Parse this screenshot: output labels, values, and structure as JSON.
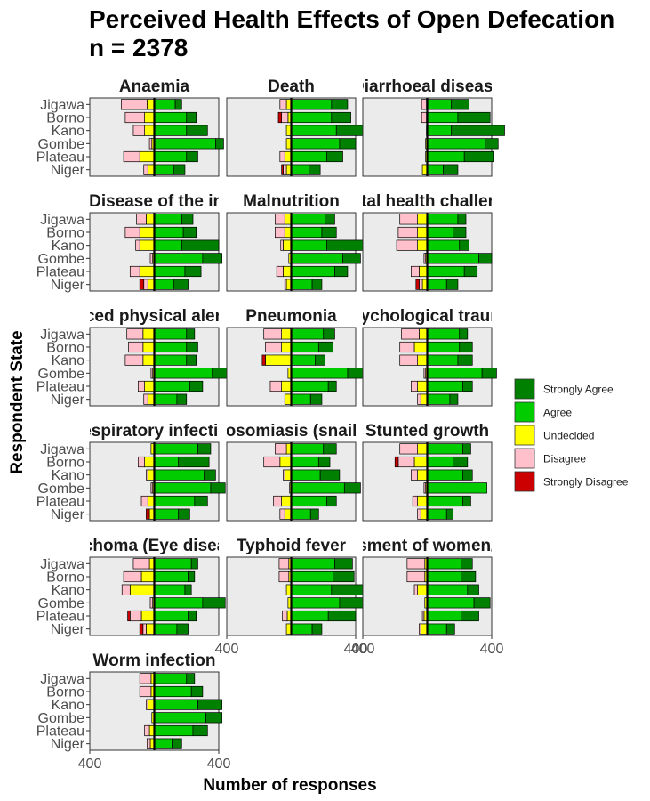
{
  "chart_data": {
    "type": "bar",
    "orientation": "horizontal-diverging",
    "title": "Perceived Health Effects of Open Defecation",
    "subtitle": "n = 2378",
    "xlabel": "Number of responses",
    "ylabel": "Respondent State",
    "categories": [
      "Jigawa",
      "Borno",
      "Kano",
      "Gombe",
      "Plateau",
      "Niger"
    ],
    "x_tick_labels": [
      "400",
      "400"
    ],
    "levels": [
      "Strongly Disagree",
      "Disagree",
      "Undecided",
      "Agree",
      "Strongly Agree"
    ],
    "legend": {
      "position": "right",
      "entries": [
        {
          "label": "Strongly Agree",
          "color": "#008000"
        },
        {
          "label": "Agree",
          "color": "#00CC00"
        },
        {
          "label": "Undecided",
          "color": "#FFFF00"
        },
        {
          "label": "Disagree",
          "color": "#FFC0CB"
        },
        {
          "label": "Strongly Disagree",
          "color": "#CC0000"
        }
      ]
    },
    "xlim": [
      -400,
      400
    ],
    "panel_background": "#EBEBEB",
    "panels": [
      {
        "title": "Anaemia",
        "rows": [
          {
            "state": "Jigawa",
            "sd": 0,
            "d": 160,
            "u": 45,
            "a": 130,
            "sa": 40
          },
          {
            "state": "Borno",
            "sd": 0,
            "d": 120,
            "u": 60,
            "a": 200,
            "sa": 60
          },
          {
            "state": "Kano",
            "sd": 0,
            "d": 70,
            "u": 60,
            "a": 200,
            "sa": 130
          },
          {
            "state": "Gombe",
            "sd": 0,
            "d": 15,
            "u": 15,
            "a": 380,
            "sa": 50
          },
          {
            "state": "Plateau",
            "sd": 0,
            "d": 100,
            "u": 90,
            "a": 200,
            "sa": 70
          },
          {
            "state": "Niger",
            "sd": 0,
            "d": 25,
            "u": 40,
            "a": 120,
            "sa": 70
          }
        ]
      },
      {
        "title": "Death",
        "rows": [
          {
            "state": "Jigawa",
            "sd": 0,
            "d": 40,
            "u": 30,
            "a": 250,
            "sa": 100
          },
          {
            "state": "Borno",
            "sd": 20,
            "d": 40,
            "u": 20,
            "a": 250,
            "sa": 120
          },
          {
            "state": "Kano",
            "sd": 0,
            "d": 0,
            "u": 30,
            "a": 280,
            "sa": 230
          },
          {
            "state": "Gombe",
            "sd": 0,
            "d": 0,
            "u": 30,
            "a": 300,
            "sa": 100
          },
          {
            "state": "Plateau",
            "sd": 0,
            "d": 30,
            "u": 40,
            "a": 220,
            "sa": 100
          },
          {
            "state": "Niger",
            "sd": 10,
            "d": 20,
            "u": 30,
            "a": 110,
            "sa": 70
          }
        ]
      },
      {
        "title": "Diarrhoeal disease",
        "rows": [
          {
            "state": "Jigawa",
            "sd": 0,
            "d": 30,
            "u": 5,
            "a": 150,
            "sa": 110
          },
          {
            "state": "Borno",
            "sd": 0,
            "d": 30,
            "u": 5,
            "a": 190,
            "sa": 200
          },
          {
            "state": "Kano",
            "sd": 0,
            "d": 0,
            "u": 5,
            "a": 150,
            "sa": 330
          },
          {
            "state": "Gombe",
            "sd": 0,
            "d": 0,
            "u": 10,
            "a": 360,
            "sa": 80
          },
          {
            "state": "Plateau",
            "sd": 0,
            "d": 0,
            "u": 10,
            "a": 230,
            "sa": 180
          },
          {
            "state": "Niger",
            "sd": 0,
            "d": 0,
            "u": 30,
            "a": 100,
            "sa": 90
          }
        ]
      },
      {
        "title": "Cholera (Disease of the intestines)",
        "rows": [
          {
            "state": "Jigawa",
            "sd": 0,
            "d": 60,
            "u": 50,
            "a": 170,
            "sa": 70
          },
          {
            "state": "Borno",
            "sd": 0,
            "d": 90,
            "u": 90,
            "a": 180,
            "sa": 80
          },
          {
            "state": "Kano",
            "sd": 0,
            "d": 25,
            "u": 90,
            "a": 170,
            "sa": 230
          },
          {
            "state": "Gombe",
            "sd": 0,
            "d": 15,
            "u": 10,
            "a": 300,
            "sa": 120
          },
          {
            "state": "Plateau",
            "sd": 0,
            "d": 60,
            "u": 90,
            "a": 190,
            "sa": 100
          },
          {
            "state": "Niger",
            "sd": 25,
            "d": 25,
            "u": 40,
            "a": 120,
            "sa": 90
          }
        ]
      },
      {
        "title": "Malnutrition",
        "rows": [
          {
            "state": "Jigawa",
            "sd": 0,
            "d": 60,
            "u": 40,
            "a": 210,
            "sa": 60
          },
          {
            "state": "Borno",
            "sd": 0,
            "d": 60,
            "u": 40,
            "a": 190,
            "sa": 90
          },
          {
            "state": "Kano",
            "sd": 0,
            "d": 15,
            "u": 50,
            "a": 220,
            "sa": 240
          },
          {
            "state": "Gombe",
            "sd": 0,
            "d": 0,
            "u": 15,
            "a": 320,
            "sa": 110
          },
          {
            "state": "Plateau",
            "sd": 0,
            "d": 40,
            "u": 50,
            "a": 270,
            "sa": 80
          },
          {
            "state": "Niger",
            "sd": 0,
            "d": 10,
            "u": 30,
            "a": 130,
            "sa": 60
          }
        ]
      },
      {
        "title": "Mental health challenges",
        "rows": [
          {
            "state": "Jigawa",
            "sd": 0,
            "d": 110,
            "u": 60,
            "a": 190,
            "sa": 50
          },
          {
            "state": "Borno",
            "sd": 0,
            "d": 120,
            "u": 60,
            "a": 160,
            "sa": 80
          },
          {
            "state": "Kano",
            "sd": 0,
            "d": 130,
            "u": 60,
            "a": 200,
            "sa": 60
          },
          {
            "state": "Gombe",
            "sd": 0,
            "d": 10,
            "u": 10,
            "a": 320,
            "sa": 80
          },
          {
            "state": "Plateau",
            "sd": 0,
            "d": 50,
            "u": 50,
            "a": 230,
            "sa": 80
          },
          {
            "state": "Niger",
            "sd": 20,
            "d": 20,
            "u": 30,
            "a": 120,
            "sa": 70
          }
        ]
      },
      {
        "title": "Reduced physical alertness",
        "rows": [
          {
            "state": "Jigawa",
            "sd": 0,
            "d": 100,
            "u": 70,
            "a": 200,
            "sa": 50
          },
          {
            "state": "Borno",
            "sd": 0,
            "d": 90,
            "u": 70,
            "a": 200,
            "sa": 70
          },
          {
            "state": "Kano",
            "sd": 0,
            "d": 110,
            "u": 70,
            "a": 200,
            "sa": 60
          },
          {
            "state": "Gombe",
            "sd": 0,
            "d": 10,
            "u": 10,
            "a": 360,
            "sa": 110
          },
          {
            "state": "Plateau",
            "sd": 0,
            "d": 40,
            "u": 60,
            "a": 220,
            "sa": 80
          },
          {
            "state": "Niger",
            "sd": 0,
            "d": 25,
            "u": 40,
            "a": 140,
            "sa": 60
          }
        ]
      },
      {
        "title": "Pneumonia",
        "rows": [
          {
            "state": "Jigawa",
            "sd": 0,
            "d": 110,
            "u": 60,
            "a": 200,
            "sa": 70
          },
          {
            "state": "Borno",
            "sd": 0,
            "d": 100,
            "u": 60,
            "a": 170,
            "sa": 90
          },
          {
            "state": "Kano",
            "sd": 20,
            "d": 0,
            "u": 160,
            "a": 150,
            "sa": 60
          },
          {
            "state": "Gombe",
            "sd": 0,
            "d": 0,
            "u": 20,
            "a": 350,
            "sa": 140
          },
          {
            "state": "Plateau",
            "sd": 0,
            "d": 70,
            "u": 60,
            "a": 230,
            "sa": 50
          },
          {
            "state": "Niger",
            "sd": 0,
            "d": 0,
            "u": 40,
            "a": 120,
            "sa": 70
          }
        ]
      },
      {
        "title": "Psychological trauma",
        "rows": [
          {
            "state": "Jigawa",
            "sd": 0,
            "d": 110,
            "u": 50,
            "a": 200,
            "sa": 50
          },
          {
            "state": "Borno",
            "sd": 0,
            "d": 90,
            "u": 80,
            "a": 200,
            "sa": 80
          },
          {
            "state": "Kano",
            "sd": 0,
            "d": 110,
            "u": 60,
            "a": 190,
            "sa": 90
          },
          {
            "state": "Gombe",
            "sd": 0,
            "d": 10,
            "u": 10,
            "a": 340,
            "sa": 90
          },
          {
            "state": "Plateau",
            "sd": 0,
            "d": 40,
            "u": 60,
            "a": 220,
            "sa": 60
          },
          {
            "state": "Niger",
            "sd": 0,
            "d": 20,
            "u": 40,
            "a": 140,
            "sa": 50
          }
        ]
      },
      {
        "title": "Respiratory infection",
        "rows": [
          {
            "state": "Jigawa",
            "sd": 0,
            "d": 0,
            "u": 20,
            "a": 270,
            "sa": 80
          },
          {
            "state": "Borno",
            "sd": 0,
            "d": 40,
            "u": 60,
            "a": 150,
            "sa": 190
          },
          {
            "state": "Kano",
            "sd": 0,
            "d": 10,
            "u": 40,
            "a": 310,
            "sa": 70
          },
          {
            "state": "Gombe",
            "sd": 0,
            "d": 10,
            "u": 10,
            "a": 350,
            "sa": 90
          },
          {
            "state": "Plateau",
            "sd": 0,
            "d": 40,
            "u": 40,
            "a": 250,
            "sa": 80
          },
          {
            "state": "Niger",
            "sd": 20,
            "d": 0,
            "u": 30,
            "a": 150,
            "sa": 70
          }
        ]
      },
      {
        "title": "Schistosomiasis (snail fever)",
        "rows": [
          {
            "state": "Jigawa",
            "sd": 0,
            "d": 70,
            "u": 30,
            "a": 200,
            "sa": 80
          },
          {
            "state": "Borno",
            "sd": 0,
            "d": 100,
            "u": 70,
            "a": 170,
            "sa": 70
          },
          {
            "state": "Kano",
            "sd": 0,
            "d": 10,
            "u": 40,
            "a": 180,
            "sa": 120
          },
          {
            "state": "Gombe",
            "sd": 0,
            "d": 0,
            "u": 10,
            "a": 330,
            "sa": 100
          },
          {
            "state": "Plateau",
            "sd": 0,
            "d": 50,
            "u": 60,
            "a": 220,
            "sa": 60
          },
          {
            "state": "Niger",
            "sd": 0,
            "d": 30,
            "u": 40,
            "a": 120,
            "sa": 50
          }
        ]
      },
      {
        "title": "Stunted growth",
        "rows": [
          {
            "state": "Jigawa",
            "sd": 0,
            "d": 110,
            "u": 60,
            "a": 220,
            "sa": 50
          },
          {
            "state": "Borno",
            "sd": 20,
            "d": 100,
            "u": 80,
            "a": 160,
            "sa": 90
          },
          {
            "state": "Kano",
            "sd": 0,
            "d": 40,
            "u": 60,
            "a": 220,
            "sa": 60
          },
          {
            "state": "Gombe",
            "sd": 0,
            "d": 10,
            "u": 10,
            "a": 370,
            "sa": 0
          },
          {
            "state": "Plateau",
            "sd": 0,
            "d": 30,
            "u": 60,
            "a": 220,
            "sa": 50
          },
          {
            "state": "Niger",
            "sd": 0,
            "d": 20,
            "u": 40,
            "a": 120,
            "sa": 40
          }
        ]
      },
      {
        "title": "Trachoma (Eye disease)",
        "rows": [
          {
            "state": "Jigawa",
            "sd": 0,
            "d": 100,
            "u": 30,
            "a": 230,
            "sa": 40
          },
          {
            "state": "Borno",
            "sd": 0,
            "d": 110,
            "u": 80,
            "a": 210,
            "sa": 40
          },
          {
            "state": "Kano",
            "sd": 0,
            "d": 50,
            "u": 150,
            "a": 190,
            "sa": 40
          },
          {
            "state": "Gombe",
            "sd": 0,
            "d": 15,
            "u": 10,
            "a": 300,
            "sa": 140
          },
          {
            "state": "Plateau",
            "sd": 15,
            "d": 70,
            "u": 80,
            "a": 210,
            "sa": 50
          },
          {
            "state": "Niger",
            "sd": 20,
            "d": 20,
            "u": 50,
            "a": 140,
            "sa": 70
          }
        ]
      },
      {
        "title": "Typhoid fever",
        "rows": [
          {
            "state": "Jigawa",
            "sd": 0,
            "d": 60,
            "u": 15,
            "a": 270,
            "sa": 110
          },
          {
            "state": "Borno",
            "sd": 0,
            "d": 60,
            "u": 15,
            "a": 260,
            "sa": 130
          },
          {
            "state": "Kano",
            "sd": 0,
            "d": 0,
            "u": 30,
            "a": 250,
            "sa": 270
          },
          {
            "state": "Gombe",
            "sd": 0,
            "d": 0,
            "u": 20,
            "a": 300,
            "sa": 180
          },
          {
            "state": "Plateau",
            "sd": 0,
            "d": 30,
            "u": 25,
            "a": 230,
            "sa": 170
          },
          {
            "state": "Niger",
            "sd": 0,
            "d": 0,
            "u": 30,
            "a": 130,
            "sa": 60
          }
        ]
      },
      {
        "title": "Violence/Harassment of women/ Sexual assault",
        "rows": [
          {
            "state": "Jigawa",
            "sd": 0,
            "d": 110,
            "u": 15,
            "a": 210,
            "sa": 70
          },
          {
            "state": "Borno",
            "sd": 0,
            "d": 110,
            "u": 15,
            "a": 210,
            "sa": 90
          },
          {
            "state": "Kano",
            "sd": 0,
            "d": 20,
            "u": 60,
            "a": 250,
            "sa": 70
          },
          {
            "state": "Gombe",
            "sd": 0,
            "d": 0,
            "u": 15,
            "a": 290,
            "sa": 100
          },
          {
            "state": "Plateau",
            "sd": 0,
            "d": 10,
            "u": 20,
            "a": 210,
            "sa": 110
          },
          {
            "state": "Niger",
            "sd": 0,
            "d": 10,
            "u": 40,
            "a": 120,
            "sa": 50
          }
        ]
      },
      {
        "title": "Worm infection",
        "rows": [
          {
            "state": "Jigawa",
            "sd": 0,
            "d": 70,
            "u": 20,
            "a": 200,
            "sa": 50
          },
          {
            "state": "Borno",
            "sd": 0,
            "d": 70,
            "u": 20,
            "a": 230,
            "sa": 70
          },
          {
            "state": "Kano",
            "sd": 0,
            "d": 10,
            "u": 40,
            "a": 270,
            "sa": 150
          },
          {
            "state": "Gombe",
            "sd": 0,
            "d": 0,
            "u": 15,
            "a": 320,
            "sa": 100
          },
          {
            "state": "Plateau",
            "sd": 0,
            "d": 30,
            "u": 30,
            "a": 240,
            "sa": 90
          },
          {
            "state": "Niger",
            "sd": 0,
            "d": 20,
            "u": 25,
            "a": 110,
            "sa": 60
          }
        ]
      }
    ]
  }
}
